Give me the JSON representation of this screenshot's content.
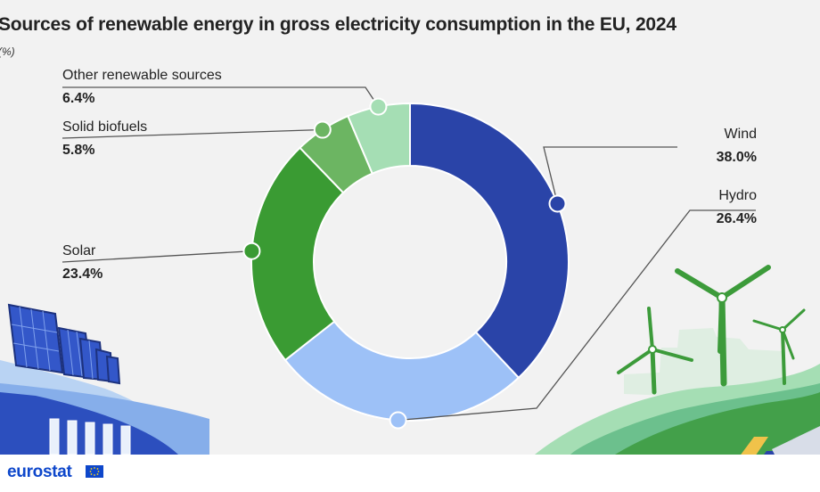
{
  "title": "Sources of renewable energy in gross electricity consumption in the EU, 2024",
  "unit": "(%)",
  "brand": "eurostat",
  "colors": {
    "wind": "#2a44a8",
    "hydro": "#9dc1f7",
    "solar": "#3a9b33",
    "solid_biofuels": "#6cb562",
    "other": "#a5deb4",
    "connector": "#555555"
  },
  "chart_data": {
    "type": "pie",
    "variant": "donut",
    "title": "Sources of renewable energy in gross electricity consumption in the EU, 2024",
    "unit": "(%)",
    "slices": [
      {
        "key": "wind",
        "label": "Wind",
        "value": 38.0,
        "value_label": "38.0%"
      },
      {
        "key": "hydro",
        "label": "Hydro",
        "value": 26.4,
        "value_label": "26.4%"
      },
      {
        "key": "solar",
        "label": "Solar",
        "value": 23.4,
        "value_label": "23.4%"
      },
      {
        "key": "solid_biofuels",
        "label": "Solid biofuels",
        "value": 5.8,
        "value_label": "5.8%"
      },
      {
        "key": "other",
        "label": "Other renewable sources",
        "value": 6.4,
        "value_label": "6.4%"
      }
    ]
  }
}
